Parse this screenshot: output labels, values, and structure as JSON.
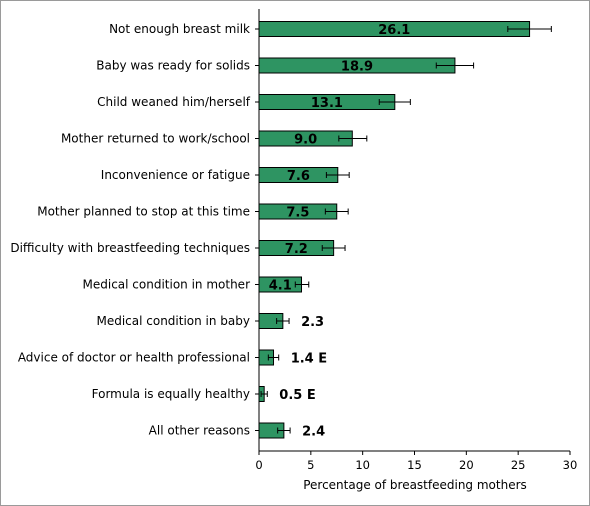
{
  "chart_data": {
    "type": "bar",
    "orientation": "horizontal",
    "categories": [
      "Not enough breast milk",
      "Baby was ready for solids",
      "Child weaned him/herself",
      "Mother returned to work/school",
      "Inconvenience or fatigue",
      "Mother planned to stop at this time",
      "Difficulty with breastfeeding techniques",
      "Medical condition in mother",
      "Medical condition in baby",
      "Advice of doctor or health professional",
      "Formula is equally healthy",
      "All other reasons"
    ],
    "values": [
      26.1,
      18.9,
      13.1,
      9.0,
      7.6,
      7.5,
      7.2,
      4.1,
      2.3,
      1.4,
      0.5,
      2.4
    ],
    "value_labels": [
      "26.1",
      "18.9",
      "13.1",
      "9.0",
      "7.6",
      "7.5",
      "7.2",
      "4.1",
      "2.3",
      "1.4 E",
      "0.5 E",
      "2.4"
    ],
    "error_low": [
      24.0,
      17.1,
      11.6,
      7.7,
      6.5,
      6.4,
      6.1,
      3.5,
      1.7,
      0.9,
      0.2,
      1.8
    ],
    "error_high": [
      28.2,
      20.7,
      14.6,
      10.4,
      8.7,
      8.6,
      8.3,
      4.8,
      2.9,
      1.9,
      0.8,
      3.0
    ],
    "xlabel": "Percentage of breastfeeding mothers",
    "ylabel": "",
    "xlim": [
      0,
      30
    ],
    "xticks": [
      0,
      5,
      10,
      15,
      20,
      25,
      30
    ],
    "bar_color": "#2e9462",
    "grid": false
  }
}
